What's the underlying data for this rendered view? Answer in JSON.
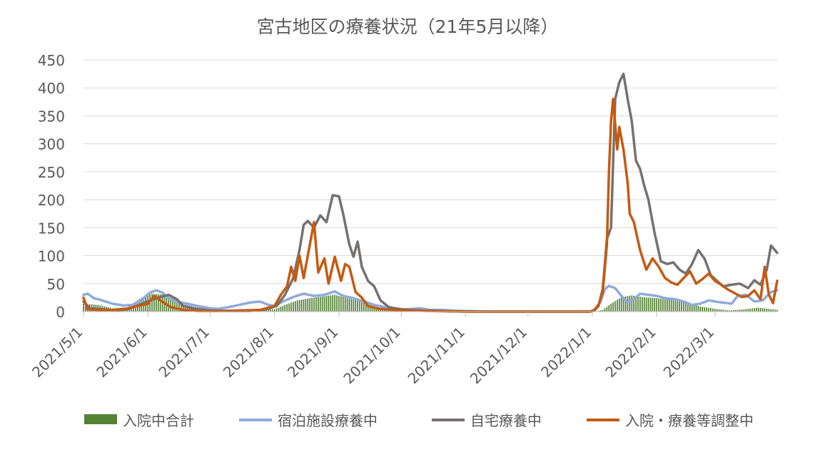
{
  "chart_data": {
    "type": "bar+line",
    "title": "宮古地区の療養状況（21年5月以降）",
    "xlabel": "",
    "ylabel": "",
    "ylim": [
      0,
      450
    ],
    "yticks": [
      0,
      50,
      100,
      150,
      200,
      250,
      300,
      350,
      400,
      450
    ],
    "x_range": [
      "2021-05-01",
      "2022-03-31"
    ],
    "x_tick_labels": [
      "2021/5/1",
      "2021/6/1",
      "2021/7/1",
      "2021/8/1",
      "2021/9/1",
      "2021/10/1",
      "2021/11/1",
      "2021/12/1",
      "2022/1/1",
      "2022/2/1",
      "2022/3/1"
    ],
    "x_tick_dates": [
      "2021-05-01",
      "2021-06-01",
      "2021-07-01",
      "2021-08-01",
      "2021-09-01",
      "2021-10-01",
      "2021-11-01",
      "2021-12-01",
      "2022-01-01",
      "2022-02-01",
      "2022-03-01"
    ],
    "grid": "horizontal",
    "legend_position": "bottom",
    "series": [
      {
        "name": "入院中合計",
        "kind": "bar",
        "color": "#548235",
        "points": [
          [
            "2021-05-01",
            14
          ],
          [
            "2021-05-08",
            12
          ],
          [
            "2021-05-15",
            6
          ],
          [
            "2021-05-22",
            8
          ],
          [
            "2021-05-29",
            25
          ],
          [
            "2021-06-03",
            32
          ],
          [
            "2021-06-10",
            30
          ],
          [
            "2021-06-17",
            14
          ],
          [
            "2021-06-24",
            8
          ],
          [
            "2021-07-01",
            5
          ],
          [
            "2021-07-15",
            2
          ],
          [
            "2021-07-25",
            3
          ],
          [
            "2021-08-01",
            4
          ],
          [
            "2021-08-06",
            12
          ],
          [
            "2021-08-12",
            20
          ],
          [
            "2021-08-18",
            24
          ],
          [
            "2021-08-24",
            27
          ],
          [
            "2021-08-30",
            30
          ],
          [
            "2021-09-05",
            24
          ],
          [
            "2021-09-12",
            18
          ],
          [
            "2021-09-20",
            8
          ],
          [
            "2021-09-28",
            3
          ],
          [
            "2021-10-05",
            1
          ],
          [
            "2021-10-20",
            0
          ],
          [
            "2021-11-15",
            0
          ],
          [
            "2021-12-31",
            0
          ],
          [
            "2022-01-02",
            0
          ],
          [
            "2022-01-06",
            3
          ],
          [
            "2022-01-10",
            14
          ],
          [
            "2022-01-15",
            26
          ],
          [
            "2022-01-20",
            29
          ],
          [
            "2022-01-25",
            26
          ],
          [
            "2022-02-01",
            24
          ],
          [
            "2022-02-08",
            21
          ],
          [
            "2022-02-15",
            16
          ],
          [
            "2022-02-22",
            9
          ],
          [
            "2022-03-01",
            5
          ],
          [
            "2022-03-08",
            2
          ],
          [
            "2022-03-15",
            4
          ],
          [
            "2022-03-22",
            7
          ],
          [
            "2022-03-31",
            3
          ]
        ]
      },
      {
        "name": "宿泊施設療養中",
        "kind": "line",
        "color": "#8FAADC",
        "points": [
          [
            "2021-05-01",
            30
          ],
          [
            "2021-05-03",
            32
          ],
          [
            "2021-05-06",
            24
          ],
          [
            "2021-05-10",
            20
          ],
          [
            "2021-05-15",
            14
          ],
          [
            "2021-05-20",
            11
          ],
          [
            "2021-05-25",
            12
          ],
          [
            "2021-05-28",
            18
          ],
          [
            "2021-06-02",
            34
          ],
          [
            "2021-06-05",
            38
          ],
          [
            "2021-06-08",
            34
          ],
          [
            "2021-06-11",
            24
          ],
          [
            "2021-06-15",
            18
          ],
          [
            "2021-06-20",
            14
          ],
          [
            "2021-06-25",
            10
          ],
          [
            "2021-07-01",
            6
          ],
          [
            "2021-07-05",
            5
          ],
          [
            "2021-07-10",
            8
          ],
          [
            "2021-07-15",
            12
          ],
          [
            "2021-07-20",
            16
          ],
          [
            "2021-07-25",
            18
          ],
          [
            "2021-07-29",
            12
          ],
          [
            "2021-08-01",
            10
          ],
          [
            "2021-08-05",
            18
          ],
          [
            "2021-08-10",
            26
          ],
          [
            "2021-08-15",
            32
          ],
          [
            "2021-08-20",
            28
          ],
          [
            "2021-08-25",
            30
          ],
          [
            "2021-08-30",
            36
          ],
          [
            "2021-09-03",
            28
          ],
          [
            "2021-09-08",
            24
          ],
          [
            "2021-09-13",
            18
          ],
          [
            "2021-09-18",
            12
          ],
          [
            "2021-09-23",
            8
          ],
          [
            "2021-09-28",
            5
          ],
          [
            "2021-10-03",
            4
          ],
          [
            "2021-10-10",
            6
          ],
          [
            "2021-10-15",
            3
          ],
          [
            "2021-10-20",
            3
          ],
          [
            "2021-10-25",
            2
          ],
          [
            "2021-11-01",
            1
          ],
          [
            "2021-11-15",
            0
          ],
          [
            "2021-12-31",
            0
          ],
          [
            "2022-01-02",
            2
          ],
          [
            "2022-01-05",
            18
          ],
          [
            "2022-01-07",
            40
          ],
          [
            "2022-01-09",
            46
          ],
          [
            "2022-01-12",
            42
          ],
          [
            "2022-01-15",
            28
          ],
          [
            "2022-01-18",
            16
          ],
          [
            "2022-01-21",
            22
          ],
          [
            "2022-01-24",
            32
          ],
          [
            "2022-01-28",
            30
          ],
          [
            "2022-02-01",
            28
          ],
          [
            "2022-02-05",
            24
          ],
          [
            "2022-02-10",
            22
          ],
          [
            "2022-02-14",
            18
          ],
          [
            "2022-02-18",
            12
          ],
          [
            "2022-02-22",
            14
          ],
          [
            "2022-02-26",
            20
          ],
          [
            "2022-03-01",
            18
          ],
          [
            "2022-03-05",
            16
          ],
          [
            "2022-03-09",
            14
          ],
          [
            "2022-03-12",
            28
          ],
          [
            "2022-03-16",
            30
          ],
          [
            "2022-03-20",
            18
          ],
          [
            "2022-03-24",
            20
          ],
          [
            "2022-03-28",
            35
          ],
          [
            "2022-03-31",
            38
          ]
        ]
      },
      {
        "name": "自宅療養中",
        "kind": "line",
        "color": "#767171",
        "points": [
          [
            "2021-05-01",
            18
          ],
          [
            "2021-05-04",
            6
          ],
          [
            "2021-05-10",
            4
          ],
          [
            "2021-05-16",
            2
          ],
          [
            "2021-05-22",
            4
          ],
          [
            "2021-05-28",
            12
          ],
          [
            "2021-06-02",
            20
          ],
          [
            "2021-06-07",
            26
          ],
          [
            "2021-06-11",
            30
          ],
          [
            "2021-06-15",
            22
          ],
          [
            "2021-06-18",
            10
          ],
          [
            "2021-06-24",
            5
          ],
          [
            "2021-07-01",
            2
          ],
          [
            "2021-07-10",
            1
          ],
          [
            "2021-07-20",
            1
          ],
          [
            "2021-07-28",
            4
          ],
          [
            "2021-08-02",
            10
          ],
          [
            "2021-08-06",
            30
          ],
          [
            "2021-08-10",
            60
          ],
          [
            "2021-08-13",
            110
          ],
          [
            "2021-08-15",
            155
          ],
          [
            "2021-08-17",
            162
          ],
          [
            "2021-08-20",
            150
          ],
          [
            "2021-08-23",
            172
          ],
          [
            "2021-08-26",
            160
          ],
          [
            "2021-08-29",
            208
          ],
          [
            "2021-09-01",
            206
          ],
          [
            "2021-09-03",
            175
          ],
          [
            "2021-09-06",
            120
          ],
          [
            "2021-09-08",
            98
          ],
          [
            "2021-09-10",
            125
          ],
          [
            "2021-09-12",
            80
          ],
          [
            "2021-09-15",
            55
          ],
          [
            "2021-09-18",
            45
          ],
          [
            "2021-09-21",
            20
          ],
          [
            "2021-09-25",
            8
          ],
          [
            "2021-10-01",
            4
          ],
          [
            "2021-10-10",
            2
          ],
          [
            "2021-10-20",
            1
          ],
          [
            "2021-11-01",
            0
          ],
          [
            "2021-12-31",
            0
          ],
          [
            "2022-01-02",
            2
          ],
          [
            "2022-01-04",
            10
          ],
          [
            "2022-01-06",
            40
          ],
          [
            "2022-01-08",
            130
          ],
          [
            "2022-01-10",
            150
          ],
          [
            "2022-01-12",
            380
          ],
          [
            "2022-01-14",
            410
          ],
          [
            "2022-01-16",
            425
          ],
          [
            "2022-01-18",
            380
          ],
          [
            "2022-01-20",
            340
          ],
          [
            "2022-01-22",
            270
          ],
          [
            "2022-01-24",
            255
          ],
          [
            "2022-01-26",
            225
          ],
          [
            "2022-01-28",
            200
          ],
          [
            "2022-01-31",
            140
          ],
          [
            "2022-02-03",
            90
          ],
          [
            "2022-02-06",
            85
          ],
          [
            "2022-02-09",
            88
          ],
          [
            "2022-02-12",
            75
          ],
          [
            "2022-02-15",
            68
          ],
          [
            "2022-02-18",
            85
          ],
          [
            "2022-02-21",
            110
          ],
          [
            "2022-02-24",
            95
          ],
          [
            "2022-02-27",
            65
          ],
          [
            "2022-03-02",
            55
          ],
          [
            "2022-03-05",
            45
          ],
          [
            "2022-03-09",
            48
          ],
          [
            "2022-03-13",
            50
          ],
          [
            "2022-03-17",
            42
          ],
          [
            "2022-03-20",
            56
          ],
          [
            "2022-03-23",
            48
          ],
          [
            "2022-03-26",
            75
          ],
          [
            "2022-03-28",
            118
          ],
          [
            "2022-03-31",
            105
          ]
        ]
      },
      {
        "name": "入院・療養等調整中",
        "kind": "line",
        "color": "#C55A11",
        "points": [
          [
            "2021-05-01",
            25
          ],
          [
            "2021-05-03",
            4
          ],
          [
            "2021-05-08",
            3
          ],
          [
            "2021-05-15",
            2
          ],
          [
            "2021-05-22",
            5
          ],
          [
            "2021-05-27",
            10
          ],
          [
            "2021-06-01",
            14
          ],
          [
            "2021-06-04",
            28
          ],
          [
            "2021-06-07",
            20
          ],
          [
            "2021-06-12",
            8
          ],
          [
            "2021-06-18",
            3
          ],
          [
            "2021-06-25",
            1
          ],
          [
            "2021-07-05",
            1
          ],
          [
            "2021-07-15",
            2
          ],
          [
            "2021-07-25",
            3
          ],
          [
            "2021-08-01",
            10
          ],
          [
            "2021-08-04",
            30
          ],
          [
            "2021-08-07",
            45
          ],
          [
            "2021-08-09",
            80
          ],
          [
            "2021-08-11",
            55
          ],
          [
            "2021-08-13",
            100
          ],
          [
            "2021-08-15",
            60
          ],
          [
            "2021-08-18",
            120
          ],
          [
            "2021-08-20",
            160
          ],
          [
            "2021-08-22",
            70
          ],
          [
            "2021-08-25",
            95
          ],
          [
            "2021-08-27",
            50
          ],
          [
            "2021-08-30",
            98
          ],
          [
            "2021-09-02",
            55
          ],
          [
            "2021-09-04",
            85
          ],
          [
            "2021-09-06",
            80
          ],
          [
            "2021-09-09",
            35
          ],
          [
            "2021-09-12",
            25
          ],
          [
            "2021-09-15",
            10
          ],
          [
            "2021-09-20",
            5
          ],
          [
            "2021-09-28",
            3
          ],
          [
            "2021-10-05",
            2
          ],
          [
            "2021-10-15",
            1
          ],
          [
            "2021-11-01",
            0
          ],
          [
            "2021-12-31",
            0
          ],
          [
            "2022-01-02",
            3
          ],
          [
            "2022-01-04",
            12
          ],
          [
            "2022-01-06",
            35
          ],
          [
            "2022-01-08",
            120
          ],
          [
            "2022-01-09",
            250
          ],
          [
            "2022-01-10",
            340
          ],
          [
            "2022-01-11",
            380
          ],
          [
            "2022-01-13",
            290
          ],
          [
            "2022-01-14",
            330
          ],
          [
            "2022-01-16",
            290
          ],
          [
            "2022-01-18",
            230
          ],
          [
            "2022-01-19",
            175
          ],
          [
            "2022-01-21",
            160
          ],
          [
            "2022-01-24",
            110
          ],
          [
            "2022-01-27",
            75
          ],
          [
            "2022-01-30",
            95
          ],
          [
            "2022-02-02",
            80
          ],
          [
            "2022-02-05",
            60
          ],
          [
            "2022-02-08",
            52
          ],
          [
            "2022-02-11",
            48
          ],
          [
            "2022-02-14",
            60
          ],
          [
            "2022-02-17",
            72
          ],
          [
            "2022-02-20",
            50
          ],
          [
            "2022-02-23",
            58
          ],
          [
            "2022-02-26",
            68
          ],
          [
            "2022-03-01",
            55
          ],
          [
            "2022-03-04",
            48
          ],
          [
            "2022-03-07",
            40
          ],
          [
            "2022-03-11",
            32
          ],
          [
            "2022-03-14",
            26
          ],
          [
            "2022-03-17",
            28
          ],
          [
            "2022-03-20",
            38
          ],
          [
            "2022-03-23",
            22
          ],
          [
            "2022-03-25",
            80
          ],
          [
            "2022-03-27",
            30
          ],
          [
            "2022-03-29",
            15
          ],
          [
            "2022-03-31",
            55
          ]
        ]
      }
    ]
  }
}
